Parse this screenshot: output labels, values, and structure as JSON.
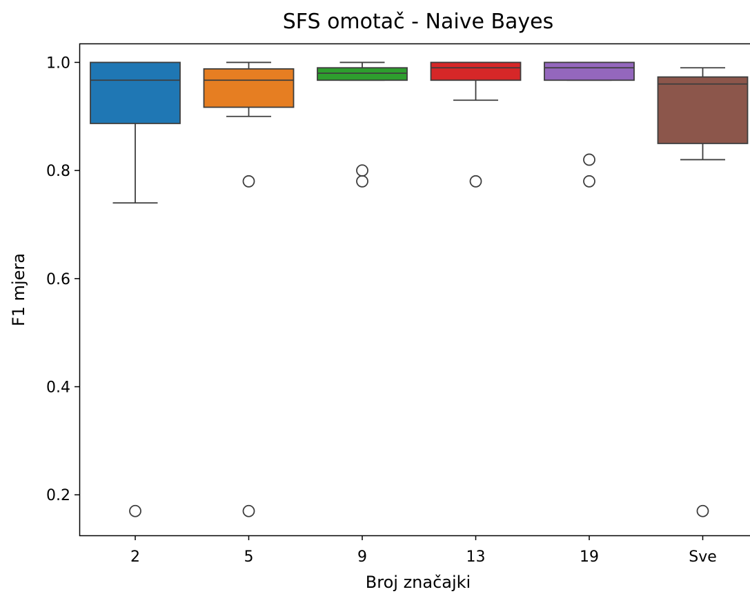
{
  "chart_data": {
    "type": "box",
    "title": "SFS omotač - Naive Bayes",
    "xlabel": "Broj značajki",
    "ylabel": "F1 mjera",
    "categories": [
      "2",
      "5",
      "9",
      "13",
      "19",
      "Sve"
    ],
    "ylim": [
      0.125,
      1.035
    ],
    "yticks": [
      "0.2",
      "0.4",
      "0.6",
      "0.8",
      "1.0"
    ],
    "grid": false,
    "boxes": [
      {
        "category": "2",
        "color": "#1f77b4",
        "whisker_low": 0.74,
        "q1": 0.887,
        "median": 0.967,
        "q3": 1.0,
        "whisker_high": 1.0,
        "outliers": [
          0.17
        ]
      },
      {
        "category": "5",
        "color": "#e67e22",
        "whisker_low": 0.9,
        "q1": 0.917,
        "median": 0.967,
        "q3": 0.988,
        "whisker_high": 1.0,
        "outliers": [
          0.78,
          0.17
        ]
      },
      {
        "category": "9",
        "color": "#2e9e2e",
        "whisker_low": 0.967,
        "q1": 0.967,
        "median": 0.98,
        "q3": 0.99,
        "whisker_high": 1.0,
        "outliers": [
          0.8,
          0.78
        ]
      },
      {
        "category": "13",
        "color": "#d62728",
        "whisker_low": 0.93,
        "q1": 0.967,
        "median": 0.99,
        "q3": 1.0,
        "whisker_high": 1.0,
        "outliers": [
          0.78
        ]
      },
      {
        "category": "19",
        "color": "#9467bd",
        "whisker_low": 0.967,
        "q1": 0.967,
        "median": 0.99,
        "q3": 1.0,
        "whisker_high": 1.0,
        "outliers": [
          0.82,
          0.78
        ]
      },
      {
        "category": "Sve",
        "color": "#8c564b",
        "whisker_low": 0.82,
        "q1": 0.85,
        "median": 0.96,
        "q3": 0.973,
        "whisker_high": 0.99,
        "outliers": [
          0.17
        ]
      }
    ]
  }
}
